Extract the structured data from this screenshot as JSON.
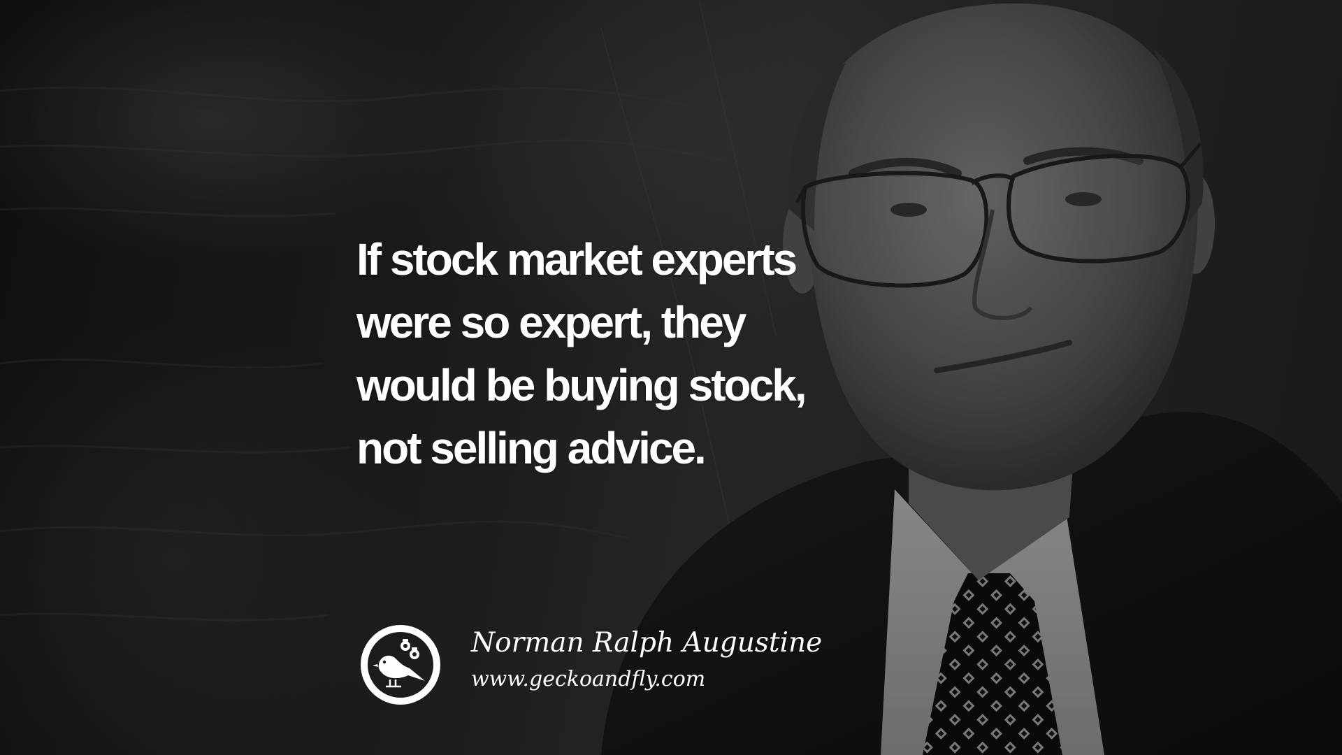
{
  "quote": {
    "lines": [
      "If stock market experts",
      "were so expert, they",
      "would be buying stock,",
      "not selling advice."
    ]
  },
  "attribution": {
    "author": "Norman Ralph Augustine",
    "website": "www.geckoandfly.com"
  },
  "logo": {
    "icon": "bird-with-gears-icon"
  },
  "colors": {
    "text": "#ffffff",
    "background": "#1a1a1a"
  }
}
